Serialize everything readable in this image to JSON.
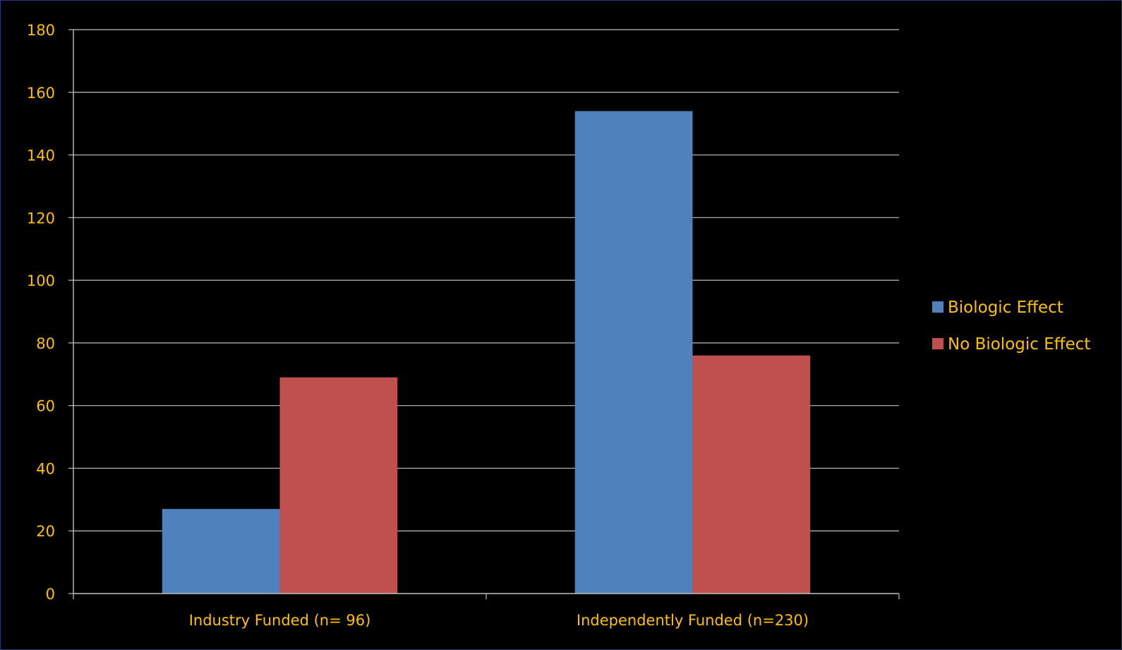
{
  "chart_data": {
    "type": "bar",
    "title": "",
    "xlabel": "",
    "ylabel": "",
    "categories": [
      "Industry Funded (n= 96)",
      "Independently Funded (n=230)"
    ],
    "series": [
      {
        "name": "Biologic Effect",
        "values": [
          27,
          154
        ],
        "color": "#4f81bd"
      },
      {
        "name": "No Biologic Effect",
        "values": [
          69,
          76
        ],
        "color": "#c0504d"
      }
    ],
    "ylim": [
      0,
      180
    ],
    "yticks": [
      0,
      20,
      40,
      60,
      80,
      100,
      120,
      140,
      160,
      180
    ],
    "grid": true,
    "legend_position": "right",
    "colors": {
      "background": "#000000",
      "text": "#ffc000",
      "gridline": "#bfbfbf",
      "axis": "#bfbfbf"
    }
  }
}
